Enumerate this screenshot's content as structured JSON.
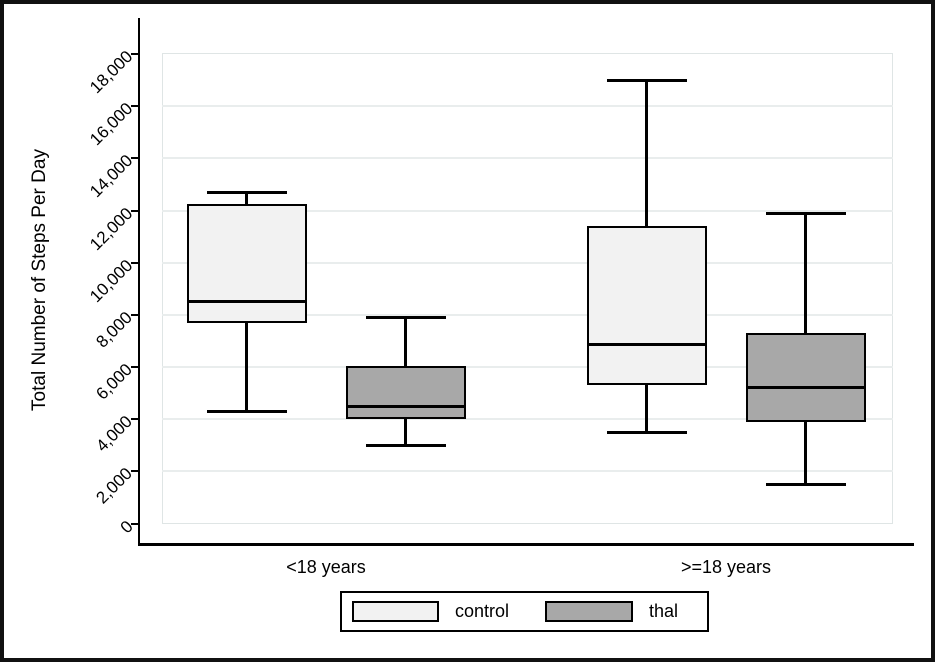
{
  "figure": {
    "background": "#ffffff",
    "border_color": "#111111"
  },
  "chart_data": {
    "type": "boxplot",
    "title": "",
    "ylabel": "Total Number of Steps Per Day",
    "ylim": [
      0,
      18000
    ],
    "ytick_step": 2000,
    "ytick_values": [
      0,
      2000,
      4000,
      6000,
      8000,
      10000,
      12000,
      14000,
      16000,
      18000
    ],
    "ytick_labels": [
      "0",
      "2,000",
      "4,000",
      "6,000",
      "8,000",
      "10,000",
      "12,000",
      "14,000",
      "16,000",
      "18,000"
    ],
    "grid": true,
    "gridline_color": "#e9eded",
    "categories": [
      "<18 years",
      ">=18 years"
    ],
    "series": [
      {
        "name": "control",
        "fill": "#f2f2f2",
        "boxes": [
          {
            "category": "<18 years",
            "min": 4300,
            "q1": 7700,
            "median": 8500,
            "q3": 12250,
            "max": 12700
          },
          {
            "category": ">=18 years",
            "min": 3500,
            "q1": 5300,
            "median": 6850,
            "q3": 11400,
            "max": 17000
          }
        ]
      },
      {
        "name": "thal",
        "fill": "#a8a8a8",
        "boxes": [
          {
            "category": "<18 years",
            "min": 3000,
            "q1": 4000,
            "median": 4500,
            "q3": 6050,
            "max": 7900
          },
          {
            "category": ">=18 years",
            "min": 1500,
            "q1": 3900,
            "median": 5200,
            "q3": 7300,
            "max": 11900
          }
        ]
      }
    ],
    "legend": {
      "position": "bottom",
      "items": [
        {
          "label": "control",
          "fill": "#f2f2f2"
        },
        {
          "label": "thal",
          "fill": "#a8a8a8"
        }
      ]
    }
  }
}
